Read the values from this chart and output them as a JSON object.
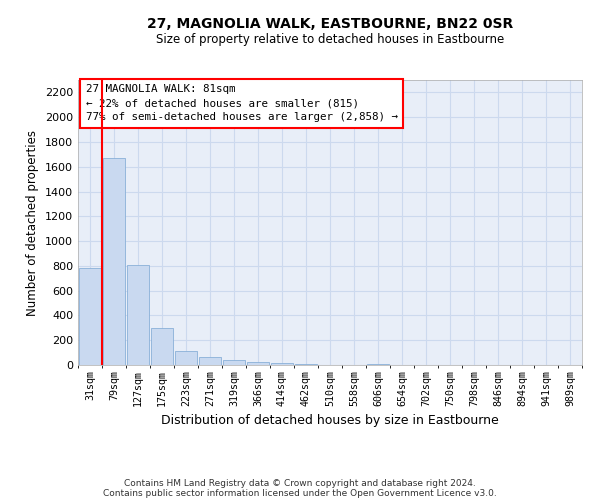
{
  "title": "27, MAGNOLIA WALK, EASTBOURNE, BN22 0SR",
  "subtitle": "Size of property relative to detached houses in Eastbourne",
  "xlabel": "Distribution of detached houses by size in Eastbourne",
  "ylabel": "Number of detached properties",
  "categories": [
    "31sqm",
    "79sqm",
    "127sqm",
    "175sqm",
    "223sqm",
    "271sqm",
    "319sqm",
    "366sqm",
    "414sqm",
    "462sqm",
    "510sqm",
    "558sqm",
    "606sqm",
    "654sqm",
    "702sqm",
    "750sqm",
    "798sqm",
    "846sqm",
    "894sqm",
    "941sqm",
    "989sqm"
  ],
  "values": [
    780,
    1670,
    810,
    300,
    110,
    65,
    42,
    28,
    18,
    8,
    3,
    2,
    5,
    2,
    1,
    1,
    0,
    0,
    0,
    0,
    0
  ],
  "bar_color": "#c9d9f0",
  "bar_edge_color": "#8ab0d8",
  "grid_color": "#ccd9ee",
  "bg_color": "#e8eef8",
  "annotation_box_text": "27 MAGNOLIA WALK: 81sqm\n← 22% of detached houses are smaller (815)\n77% of semi-detached houses are larger (2,858) →",
  "vline_x": 0.52,
  "ylim": [
    0,
    2300
  ],
  "yticks": [
    0,
    200,
    400,
    600,
    800,
    1000,
    1200,
    1400,
    1600,
    1800,
    2000,
    2200
  ],
  "footnote_line1": "Contains HM Land Registry data © Crown copyright and database right 2024.",
  "footnote_line2": "Contains public sector information licensed under the Open Government Licence v3.0."
}
